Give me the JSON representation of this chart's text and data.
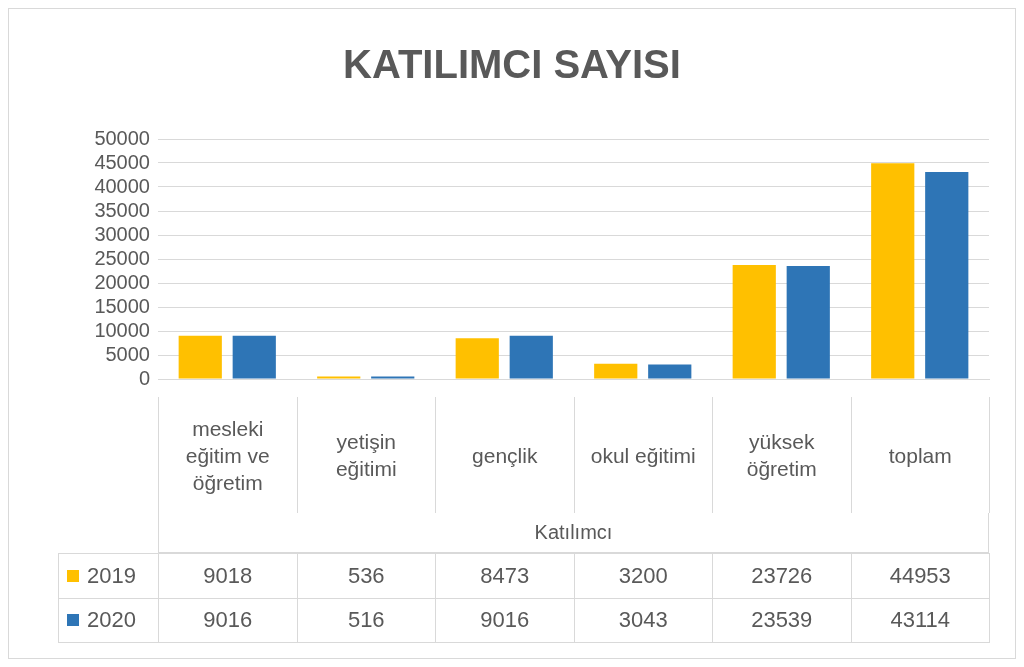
{
  "chart_data": {
    "type": "bar",
    "title": "KATILIMCI SAYISI",
    "xlabel": "Katılımcı",
    "categories": [
      "mesleki eğitim ve öğretim",
      "yetişin eğitimi",
      "gençlik",
      "okul eğitimi",
      "yüksek öğretim",
      "toplam"
    ],
    "series": [
      {
        "name": "2019",
        "color": "#ffc000",
        "values": [
          9018,
          536,
          8473,
          3200,
          23726,
          44953
        ]
      },
      {
        "name": "2020",
        "color": "#2e75b6",
        "values": [
          9016,
          516,
          9016,
          3043,
          23539,
          43114
        ]
      }
    ],
    "ylim": [
      0,
      50000
    ],
    "yticks": [
      0,
      5000,
      10000,
      15000,
      20000,
      25000,
      30000,
      35000,
      40000,
      45000,
      50000
    ],
    "grid": "y",
    "legend": "bottom",
    "data_labels": true
  }
}
